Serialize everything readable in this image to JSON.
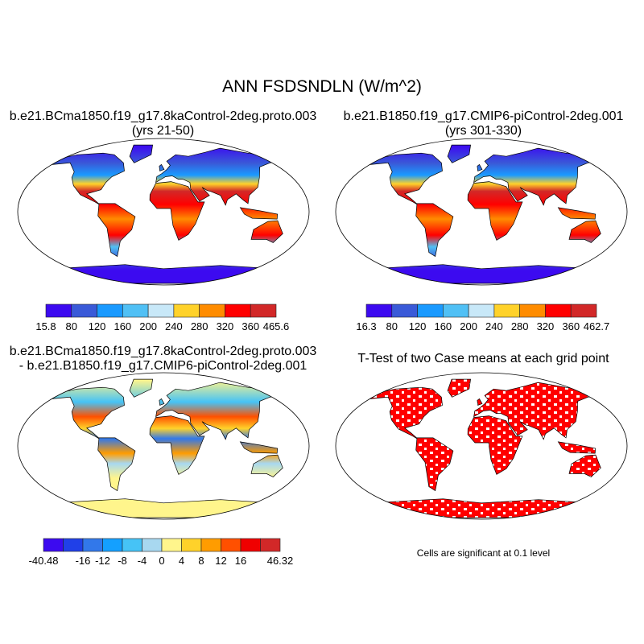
{
  "title": "ANN FSDSNDLN (W/m^2)",
  "panels": [
    {
      "title1": "b.e21.BCma1850.f19_g17.8kaControl-2deg.proto.003",
      "title2": "(yrs 21-50)"
    },
    {
      "title1": "b.e21.B1850.f19_g17.CMIP6-piControl-2deg.001",
      "title2": "(yrs 301-330)"
    },
    {
      "title1": "b.e21.BCma1850.f19_g17.8kaControl-2deg.proto.003",
      "title2": "- b.e21.B1850.f19_g17.CMIP6-piControl-2deg.001"
    },
    {
      "title1": "T-Test of two Case means at each grid point",
      "note": "Cells are significant at 0.1 level"
    }
  ],
  "colorbars": [
    {
      "colors": [
        "#3c0af0",
        "#3a5ad8",
        "#1a9aff",
        "#50c0f5",
        "#c8e8f8",
        "#ffd22a",
        "#ff8c00",
        "#ff0000",
        "#d22828"
      ],
      "labels": [
        "15.8",
        "80",
        "120",
        "160",
        "200",
        "240",
        "280",
        "320",
        "360",
        "465.6"
      ]
    },
    {
      "colors": [
        "#3c0af0",
        "#3a5ad8",
        "#1a9aff",
        "#50c0f5",
        "#c8e8f8",
        "#ffd22a",
        "#ff8c00",
        "#ff0000",
        "#d22828"
      ],
      "labels": [
        "16.3",
        "80",
        "120",
        "160",
        "200",
        "240",
        "280",
        "320",
        "360",
        "462.7"
      ]
    },
    {
      "colors": [
        "#3c0af0",
        "#2040e8",
        "#3278ea",
        "#14a0ff",
        "#46c3f6",
        "#a8d8f0",
        "#fff58c",
        "#ffd22a",
        "#ff9c00",
        "#ff5000",
        "#f00000",
        "#d22828"
      ],
      "labels": [
        "-40.48",
        "",
        "-16",
        "-12",
        "-8",
        "-4",
        "0",
        "4",
        "8",
        "12",
        "16",
        "",
        "46.32"
      ]
    }
  ],
  "significance_color": "#ff0000"
}
